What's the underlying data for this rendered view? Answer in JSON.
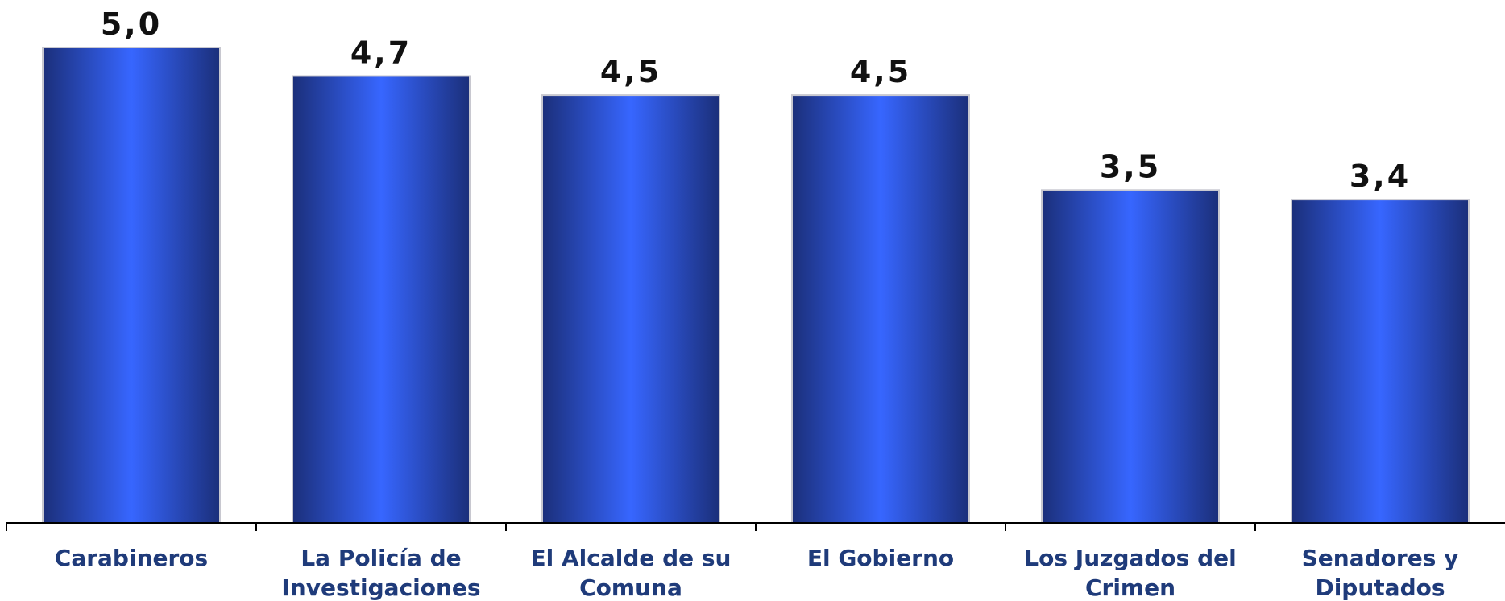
{
  "chart_data": {
    "type": "bar",
    "categories": [
      [
        "Carabineros"
      ],
      [
        "La Policía de",
        "Investigaciones"
      ],
      [
        "El Alcalde de su",
        "Comuna"
      ],
      [
        "El Gobierno"
      ],
      [
        "Los Juzgados del",
        "Crimen"
      ],
      [
        "Senadores y",
        "Diputados"
      ]
    ],
    "values": [
      5.0,
      4.7,
      4.5,
      4.5,
      3.5,
      3.4
    ],
    "value_labels": [
      "5,0",
      "4,7",
      "4,5",
      "4,5",
      "3,5",
      "3,4"
    ],
    "ylim": [
      0,
      5.0
    ],
    "grid": false,
    "legend": "none",
    "colors": {
      "bar_edge": "#1b2f7a",
      "bar_center": "#3766ff",
      "bar_outline": "#c8c8d0",
      "axis": "#000000",
      "category_text": "#1f3b7a",
      "value_text": "#111111"
    }
  }
}
